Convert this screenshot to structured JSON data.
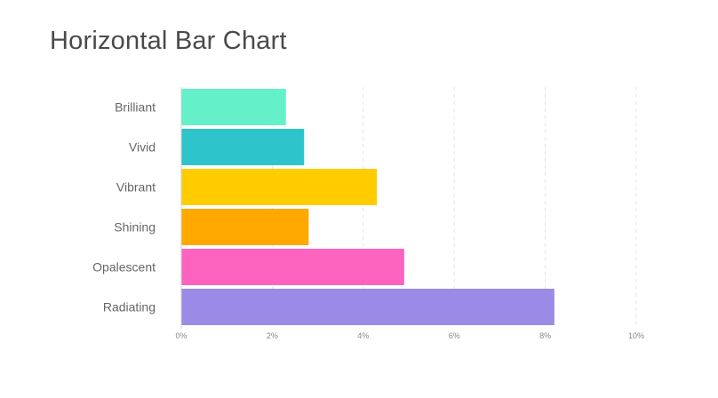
{
  "chart_data": {
    "type": "bar",
    "orientation": "horizontal",
    "title": "Horizontal Bar Chart",
    "xlabel": "",
    "ylabel": "",
    "categories": [
      "Brilliant",
      "Vivid",
      "Vibrant",
      "Shining",
      "Opalescent",
      "Radiating"
    ],
    "values": [
      2.3,
      2.7,
      4.3,
      2.8,
      4.9,
      8.2
    ],
    "colors": [
      "#64F0C8",
      "#2EC4CC",
      "#FFCC00",
      "#FFA800",
      "#FC63BF",
      "#9B8AE6"
    ],
    "xlim": [
      0,
      10
    ],
    "x_ticks": [
      0,
      2,
      4,
      6,
      8,
      10
    ],
    "x_tick_labels": [
      "0%",
      "2%",
      "4%",
      "6%",
      "8%",
      "10%"
    ],
    "grid": "vertical dashed",
    "legend": "none"
  }
}
